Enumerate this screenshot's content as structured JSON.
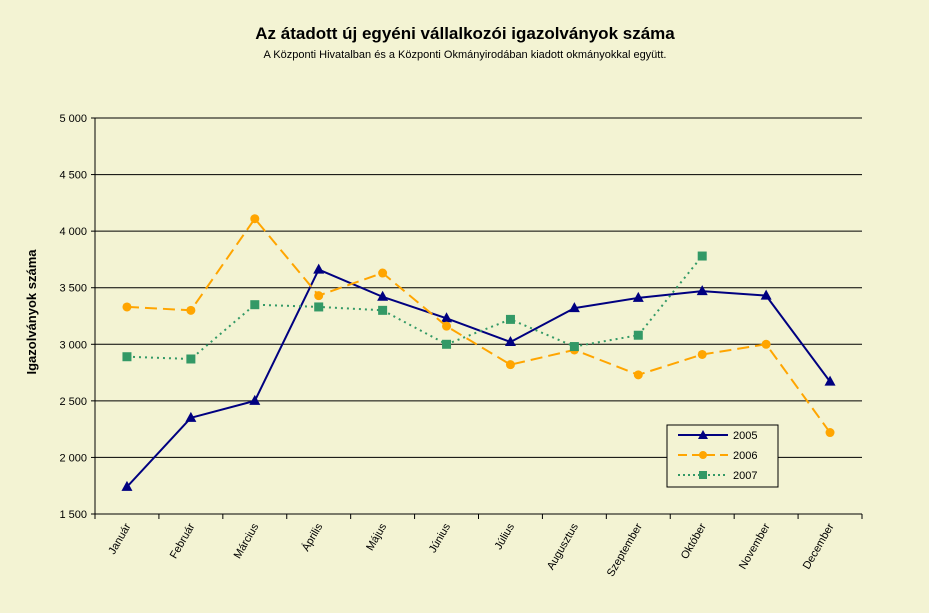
{
  "colors": {
    "background": "#F3F3D3",
    "gridline": "#000000",
    "s2005": "#000080",
    "s2006": "#FFA500",
    "s2007": "#339966"
  },
  "chart_data": {
    "type": "line",
    "title": "Az átadott új egyéni vállalkozói  igazolványok száma",
    "subtitle": "A Központi Hivatalban és a Központi Okmányirodában kiadott okmányokkal együtt.",
    "xlabel": "",
    "ylabel": "Igazolványok száma",
    "ylim": [
      1500,
      5000
    ],
    "yticks": [
      1500,
      2000,
      2500,
      3000,
      3500,
      4000,
      4500,
      5000
    ],
    "ytick_labels": [
      "1 500",
      "2 000",
      "2 500",
      "3 000",
      "3 500",
      "4 000",
      "4 500",
      "5 000"
    ],
    "grid": true,
    "legend_position": "bottom-right",
    "categories": [
      "Január",
      "Február",
      "Március",
      "Április",
      "Május",
      "Június",
      "Július",
      "Augusztus",
      "Szeptember",
      "Október",
      "November",
      "December"
    ],
    "series": [
      {
        "name": "2005",
        "color": "#000080",
        "marker": "triangle",
        "dash": "solid",
        "values": [
          1740,
          2350,
          2500,
          3660,
          3420,
          3230,
          3020,
          3320,
          3410,
          3470,
          3430,
          2670
        ]
      },
      {
        "name": "2006",
        "color": "#FFA500",
        "marker": "circle",
        "dash": "dashed",
        "values": [
          3330,
          3300,
          4110,
          3430,
          3630,
          3160,
          2820,
          2950,
          2730,
          2910,
          3000,
          2220
        ]
      },
      {
        "name": "2007",
        "color": "#339966",
        "marker": "square",
        "dash": "dotted",
        "values": [
          2890,
          2870,
          3350,
          3330,
          3300,
          3000,
          3220,
          2980,
          3080,
          3780,
          null,
          null
        ]
      }
    ]
  }
}
